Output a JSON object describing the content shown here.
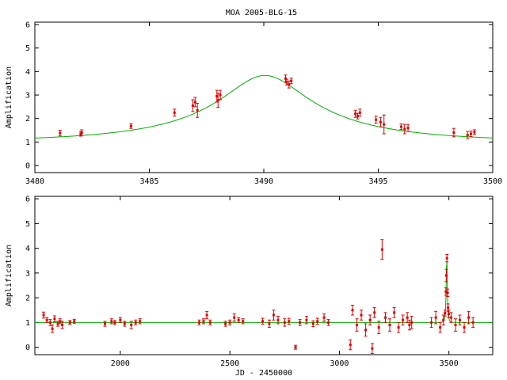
{
  "title": "MOA 2005-BLG-15",
  "chart_data": [
    {
      "type": "scatter",
      "xlabel": "",
      "ylabel": "Amplification",
      "xlim": [
        3480,
        3500
      ],
      "ylim": [
        -0.3,
        6.1
      ],
      "xticks": [
        3480,
        3485,
        3490,
        3495,
        3500
      ],
      "yticks": [
        0,
        1,
        2,
        3,
        4,
        5,
        6
      ],
      "model": {
        "t0": 3490.05,
        "u0": 0.268,
        "tE": 7.5,
        "baseline_extra": 0.0
      },
      "points": [
        [
          3481.1,
          1.38,
          0.12
        ],
        [
          3482.0,
          1.35,
          0.1
        ],
        [
          3482.05,
          1.4,
          0.12
        ],
        [
          3484.2,
          1.68,
          0.1
        ],
        [
          3486.1,
          2.25,
          0.15
        ],
        [
          3486.9,
          2.55,
          0.25
        ],
        [
          3487.0,
          2.7,
          0.2
        ],
        [
          3487.1,
          2.35,
          0.3
        ],
        [
          3487.95,
          2.95,
          0.25
        ],
        [
          3488.0,
          2.78,
          0.3
        ],
        [
          3488.1,
          3.0,
          0.2
        ],
        [
          3490.95,
          3.7,
          0.15
        ],
        [
          3491.0,
          3.55,
          0.12
        ],
        [
          3491.1,
          3.45,
          0.15
        ],
        [
          3491.2,
          3.6,
          0.12
        ],
        [
          3494.0,
          2.2,
          0.15
        ],
        [
          3494.1,
          2.1,
          0.12
        ],
        [
          3494.2,
          2.25,
          0.15
        ],
        [
          3494.9,
          1.95,
          0.15
        ],
        [
          3495.1,
          1.85,
          0.2
        ],
        [
          3495.25,
          1.75,
          0.4
        ],
        [
          3496.0,
          1.65,
          0.12
        ],
        [
          3496.15,
          1.55,
          0.2
        ],
        [
          3496.3,
          1.6,
          0.15
        ],
        [
          3498.3,
          1.4,
          0.18
        ],
        [
          3498.9,
          1.3,
          0.15
        ],
        [
          3499.05,
          1.35,
          0.12
        ],
        [
          3499.2,
          1.42,
          0.1
        ]
      ]
    },
    {
      "type": "scatter",
      "xlabel": "JD - 2450000",
      "ylabel": "Amplification",
      "xlim": [
        1610,
        3700
      ],
      "ylim": [
        -0.3,
        6.1
      ],
      "xticks": [
        2000,
        2500,
        3000,
        3500
      ],
      "yticks": [
        0,
        1,
        2,
        3,
        4,
        5,
        6
      ],
      "model": {
        "t0": 3490.05,
        "u0": 0.268,
        "tE": 7.5,
        "baseline_extra": 0.0
      },
      "points": [
        [
          1650,
          1.3,
          0.12
        ],
        [
          1665,
          1.1,
          0.1
        ],
        [
          1680,
          1.0,
          0.12
        ],
        [
          1690,
          0.75,
          0.15
        ],
        [
          1700,
          1.15,
          0.12
        ],
        [
          1715,
          0.95,
          0.1
        ],
        [
          1725,
          1.05,
          0.1
        ],
        [
          1735,
          0.9,
          0.15
        ],
        [
          1770,
          1.0,
          0.08
        ],
        [
          1790,
          1.05,
          0.08
        ],
        [
          1930,
          0.95,
          0.1
        ],
        [
          1960,
          1.05,
          0.1
        ],
        [
          1975,
          1.0,
          0.08
        ],
        [
          2000,
          1.1,
          0.1
        ],
        [
          2020,
          0.95,
          0.1
        ],
        [
          2050,
          0.9,
          0.15
        ],
        [
          2070,
          1.0,
          0.1
        ],
        [
          2090,
          1.05,
          0.1
        ],
        [
          2360,
          1.0,
          0.1
        ],
        [
          2380,
          1.05,
          0.1
        ],
        [
          2395,
          1.3,
          0.15
        ],
        [
          2410,
          1.0,
          0.1
        ],
        [
          2480,
          0.95,
          0.1
        ],
        [
          2500,
          1.0,
          0.1
        ],
        [
          2520,
          1.2,
          0.15
        ],
        [
          2540,
          1.1,
          0.1
        ],
        [
          2560,
          1.05,
          0.1
        ],
        [
          2650,
          1.05,
          0.12
        ],
        [
          2680,
          0.95,
          0.15
        ],
        [
          2700,
          1.3,
          0.2
        ],
        [
          2720,
          1.1,
          0.15
        ],
        [
          2750,
          1.0,
          0.15
        ],
        [
          2770,
          1.05,
          0.12
        ],
        [
          2800,
          0.0,
          0.08
        ],
        [
          2820,
          1.0,
          0.12
        ],
        [
          2850,
          1.1,
          0.15
        ],
        [
          2880,
          0.95,
          0.12
        ],
        [
          2900,
          1.05,
          0.12
        ],
        [
          2930,
          1.2,
          0.15
        ],
        [
          2950,
          1.0,
          0.12
        ],
        [
          3050,
          0.1,
          0.2
        ],
        [
          3060,
          1.5,
          0.2
        ],
        [
          3080,
          0.9,
          0.25
        ],
        [
          3100,
          1.3,
          0.2
        ],
        [
          3120,
          0.7,
          0.25
        ],
        [
          3140,
          1.1,
          0.2
        ],
        [
          3150,
          -0.05,
          0.2
        ],
        [
          3160,
          1.4,
          0.2
        ],
        [
          3180,
          0.8,
          0.25
        ],
        [
          3195,
          3.95,
          0.4
        ],
        [
          3210,
          1.2,
          0.2
        ],
        [
          3230,
          0.9,
          0.25
        ],
        [
          3250,
          1.4,
          0.2
        ],
        [
          3270,
          0.8,
          0.2
        ],
        [
          3290,
          1.1,
          0.2
        ],
        [
          3310,
          1.2,
          0.2
        ],
        [
          3320,
          0.9,
          0.2
        ],
        [
          3330,
          1.0,
          0.25
        ],
        [
          3420,
          1.0,
          0.2
        ],
        [
          3440,
          1.2,
          0.25
        ],
        [
          3460,
          0.8,
          0.2
        ],
        [
          3475,
          1.1,
          0.2
        ],
        [
          3482,
          1.38,
          0.12
        ],
        [
          3486,
          2.25,
          0.15
        ],
        [
          3488,
          2.9,
          0.25
        ],
        [
          3491,
          3.6,
          0.15
        ],
        [
          3494,
          2.2,
          0.15
        ],
        [
          3496,
          1.6,
          0.15
        ],
        [
          3499,
          1.35,
          0.15
        ],
        [
          3510,
          1.2,
          0.2
        ],
        [
          3530,
          0.9,
          0.25
        ],
        [
          3550,
          1.1,
          0.2
        ],
        [
          3570,
          0.8,
          0.2
        ],
        [
          3590,
          1.2,
          0.25
        ],
        [
          3610,
          1.0,
          0.2
        ]
      ]
    }
  ]
}
